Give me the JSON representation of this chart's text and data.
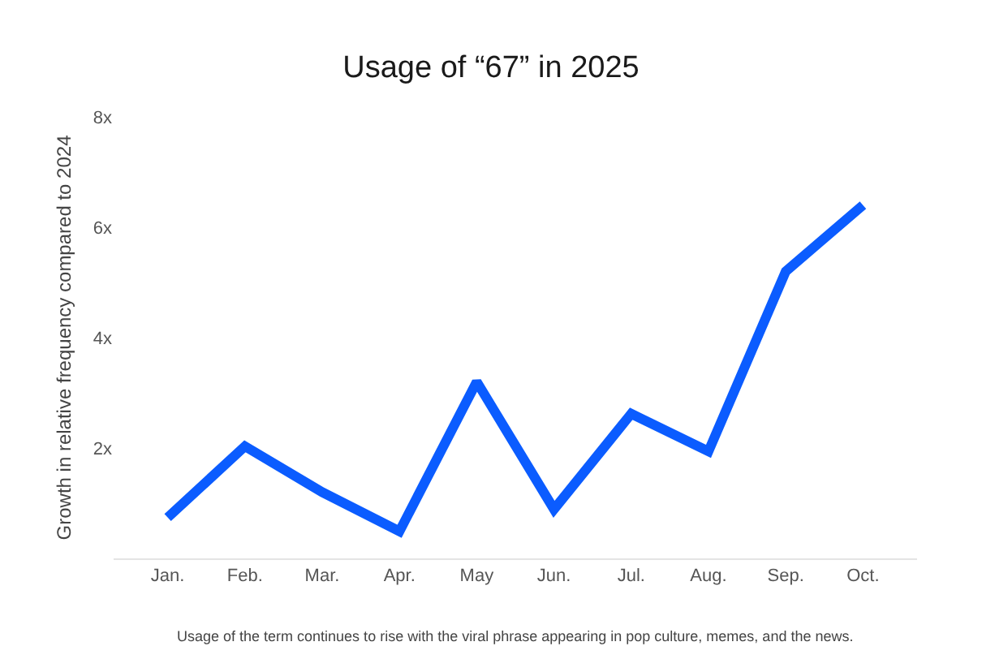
{
  "chart_data": {
    "type": "line",
    "title": "Usage of “67” in 2025",
    "ylabel": "Growth in relative frequency compared to 2024",
    "categories": [
      "Jan.",
      "Feb.",
      "Mar.",
      "Apr.",
      "May",
      "Jun.",
      "Jul.",
      "Aug.",
      "Sep.",
      "Oct."
    ],
    "series": [
      {
        "color": "#0b5cff",
        "values": [
          0.74,
          2.03,
          1.2,
          0.49,
          3.2,
          0.89,
          2.62,
          1.94,
          5.2,
          6.4
        ]
      }
    ],
    "ylim": [
      0,
      8
    ],
    "yticks": [
      {
        "value": 2,
        "label": "2x"
      },
      {
        "value": 4,
        "label": "4x"
      },
      {
        "value": 6,
        "label": "6x"
      },
      {
        "value": 8,
        "label": "8x"
      }
    ],
    "grid": false,
    "marker": "none",
    "line_style": "solid",
    "annotations": [
      "Usage of the term continues to rise with the viral phrase appearing in pop culture, memes, and the news."
    ]
  }
}
